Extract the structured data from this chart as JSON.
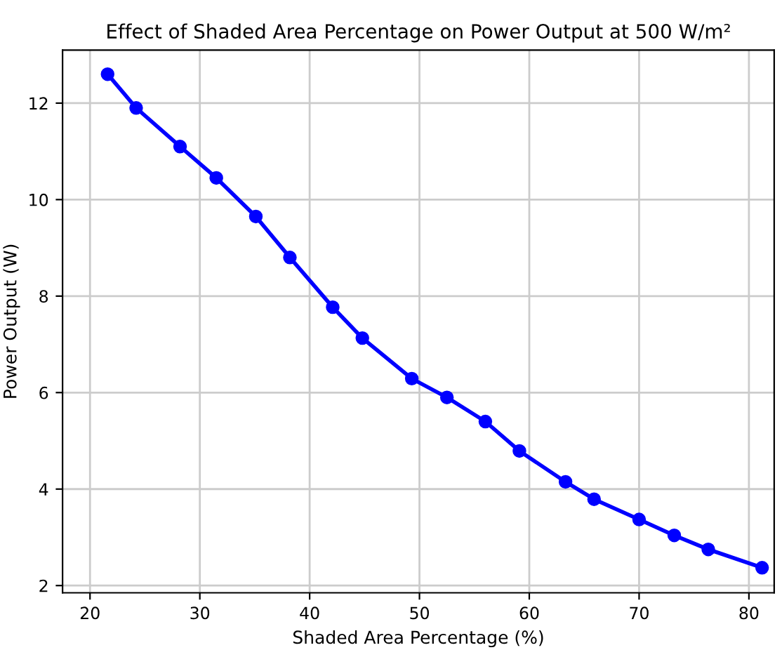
{
  "chart_data": {
    "type": "line",
    "title": "Effect of Shaded Area Percentage on Power Output at 500 W/m²",
    "xlabel": "Shaded Area Percentage (%)",
    "ylabel": "Power Output (W)",
    "x": [
      21.6,
      24.2,
      28.2,
      31.5,
      35.1,
      38.2,
      42.1,
      44.8,
      49.3,
      52.5,
      56.0,
      59.1,
      63.3,
      65.9,
      70.0,
      73.2,
      76.3,
      81.2
    ],
    "series": [
      {
        "color": "#0000ff",
        "values": [
          12.6,
          11.9,
          11.1,
          10.45,
          9.65,
          8.8,
          7.77,
          7.13,
          6.29,
          5.9,
          5.4,
          4.79,
          4.15,
          3.79,
          3.37,
          3.04,
          2.75,
          2.37
        ]
      }
    ],
    "xlim": [
      17.5,
      82.3
    ],
    "xticks": [
      20,
      30,
      40,
      50,
      60,
      70,
      80
    ],
    "ylim": [
      1.85,
      13.1
    ],
    "yticks": [
      2,
      4,
      6,
      8,
      10,
      12
    ],
    "grid": true,
    "marker": "circle",
    "line_style": "solid"
  }
}
